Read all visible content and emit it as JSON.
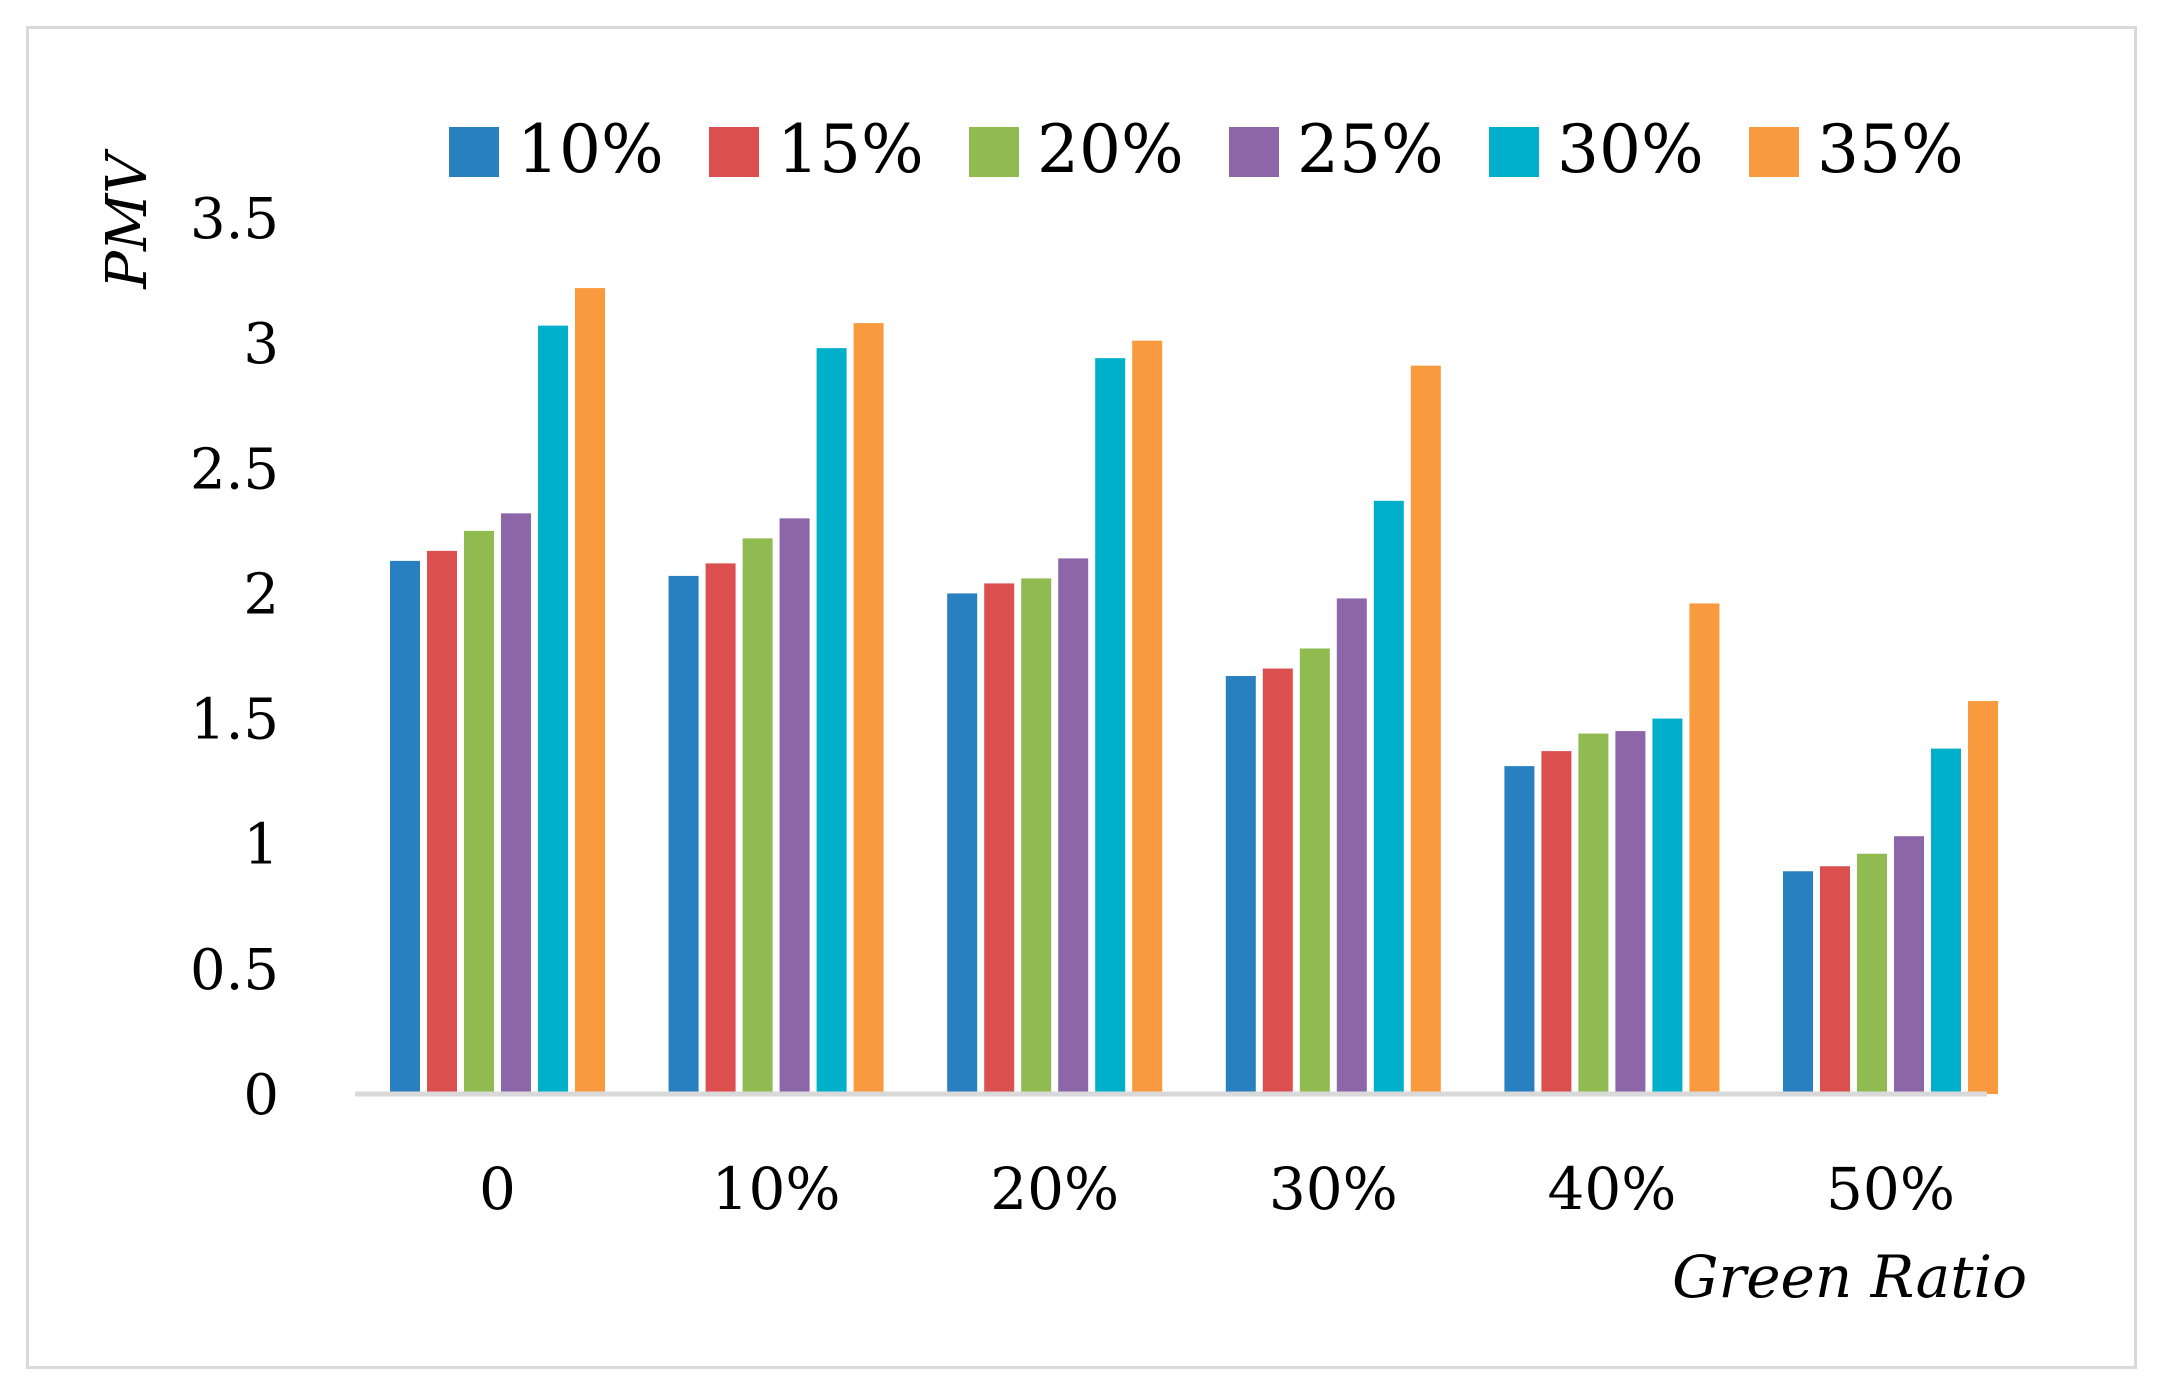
{
  "chart_data": {
    "type": "bar",
    "title": "",
    "xlabel": "Green Ratio",
    "ylabel": "PMV",
    "categories": [
      "0",
      "10%",
      "20%",
      "30%",
      "40%",
      "50%"
    ],
    "ylim": [
      0,
      3.5
    ],
    "yticks": [
      "0",
      "0.5",
      "1",
      "1.5",
      "2",
      "2.5",
      "3",
      "3.5"
    ],
    "grid": false,
    "legend_position": "top",
    "series": [
      {
        "name": "10%",
        "color": "#2980c1",
        "values": [
          2.13,
          2.07,
          2.0,
          1.67,
          1.31,
          0.89
        ]
      },
      {
        "name": "15%",
        "color": "#dc4f4f",
        "values": [
          2.17,
          2.12,
          2.04,
          1.7,
          1.37,
          0.91
        ]
      },
      {
        "name": "20%",
        "color": "#8fbb50",
        "values": [
          2.25,
          2.22,
          2.06,
          1.78,
          1.44,
          0.96
        ]
      },
      {
        "name": "25%",
        "color": "#8c66a9",
        "values": [
          2.32,
          2.3,
          2.14,
          1.98,
          1.45,
          1.03
        ]
      },
      {
        "name": "30%",
        "color": "#00afca",
        "values": [
          3.07,
          2.98,
          2.94,
          2.37,
          1.5,
          1.38
        ]
      },
      {
        "name": "35%",
        "color": "#fa9a3e",
        "values": [
          3.22,
          3.08,
          3.01,
          2.91,
          1.96,
          1.57
        ]
      }
    ]
  }
}
